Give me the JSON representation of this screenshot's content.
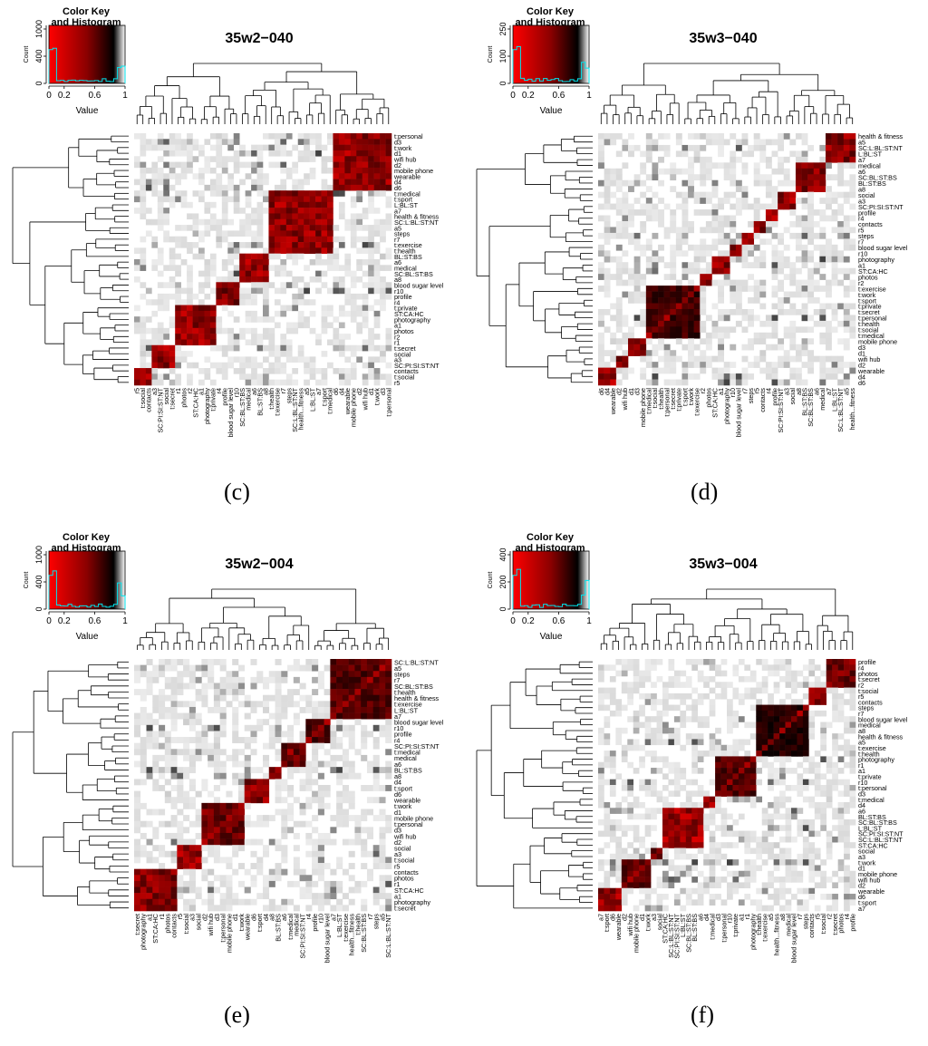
{
  "panels": {
    "c": {
      "tag": "(c)",
      "title": "35w2−040",
      "key_title": "Color Key\nand Histogram",
      "count_label": "Count",
      "count_ticks": [
        "0",
        "400",
        "1000"
      ],
      "value_label": "Value",
      "value_ticks": [
        "0",
        "0.2",
        "0.6",
        "1"
      ],
      "row_labels": [
        "t:personal",
        "d3",
        "t:work",
        "d1",
        "wifi hub",
        "d2",
        "mobile phone",
        "wearable",
        "d4",
        "d6",
        "t:medical",
        "t:sport",
        "L:BL:ST",
        "a7",
        "health & fitness",
        "SC:L:BL:ST:NT",
        "a5",
        "steps",
        "r7",
        "t:exercise",
        "t:health",
        "BL:ST:BS",
        "a6",
        "medical",
        "SC:BL:ST:BS",
        "a8",
        "blood sugar level",
        "r10",
        "profile",
        "r4",
        "t:private",
        "ST:CA:HC",
        "photography",
        "a1",
        "photos",
        "r2",
        "r1",
        "t:secret",
        "social",
        "a3",
        "SC:PI:SI:ST:NT",
        "contacts",
        "t:social",
        "r5"
      ],
      "col_labels": [
        "r5",
        "t:social",
        "contacts",
        "a3",
        "SC:PI:SI:ST:NT",
        "social",
        "t:secret",
        "r1",
        "photos",
        "r2",
        "ST:CA:HC",
        "a1",
        "photography",
        "t:private",
        "r4",
        "profile",
        "blood sugar level",
        "r10",
        "SC:BL:ST:BS",
        "medical",
        "a6",
        "BL:ST:BS",
        "a8",
        "t:health",
        "t:exercise",
        "r7",
        "steps",
        "SC:L:BL:ST:NT",
        "health...fitness",
        "a5",
        "L:BL:ST",
        "a7",
        "t:sport",
        "t:medical",
        "d6",
        "d4",
        "wearable",
        "mobile phone",
        "d2",
        "wifi hub",
        "d1",
        "t:work",
        "d3",
        "t:personal"
      ]
    },
    "d": {
      "tag": "(d)",
      "title": "35w3−040",
      "key_title": "Color Key\nand Histogram",
      "count_label": "Count",
      "count_ticks": [
        "0",
        "100",
        "250"
      ],
      "value_label": "Value",
      "value_ticks": [
        "0",
        "0.2",
        "0.6",
        "1"
      ],
      "row_labels": [
        "health & fitness",
        "a5",
        "SC:L:BL:ST:NT",
        "L:BL:ST",
        "a7",
        "medical",
        "a6",
        "SC:BL:ST:BS",
        "BL:ST:BS",
        "a8",
        "social",
        "a3",
        "SC:PI:SI:ST:NT",
        "profile",
        "r4",
        "contacts",
        "r5",
        "steps",
        "r7",
        "blood sugar level",
        "r10",
        "photography",
        "a1",
        "ST:CA:HC",
        "photos",
        "r2",
        "t:exercise",
        "t:work",
        "t:sport",
        "t:private",
        "t:secret",
        "t:personal",
        "t:health",
        "t:social",
        "t:medical",
        "mobile phone",
        "d3",
        "d1",
        "wifi hub",
        "d2",
        "wearable",
        "d4",
        "d6"
      ],
      "col_labels": [
        "d6",
        "d4",
        "wearable",
        "d2",
        "wifi hub",
        "d1",
        "d3",
        "mobile phone",
        "t:medical",
        "t:social",
        "t:health",
        "t:personal",
        "t:secret",
        "t:private",
        "t:sport",
        "t:work",
        "t:exercise",
        "r2",
        "photos",
        "ST:CA:HC",
        "a1",
        "photography",
        "r10",
        "blood sugar level",
        "r7",
        "steps",
        "r5",
        "contacts",
        "r4",
        "profile",
        "SC:PI:SI:ST:NT",
        "a3",
        "social",
        "a8",
        "BL:ST:BS",
        "SC:BL:ST:BS",
        "a6",
        "medical",
        "a7",
        "L:BL:ST",
        "SC:L:BL:ST:NT",
        "a5",
        "health...fitness"
      ]
    },
    "e": {
      "tag": "(e)",
      "title": "35w2−004",
      "key_title": "Color Key\nand Histogram",
      "count_label": "Count",
      "count_ticks": [
        "0",
        "400",
        "1000"
      ],
      "value_label": "Value",
      "value_ticks": [
        "0",
        "0.2",
        "0.6",
        "1"
      ],
      "row_labels": [
        "SC:L:BL:ST:NT",
        "a5",
        "steps",
        "r7",
        "SC:BL:ST:BS",
        "t:health",
        "health & fitness",
        "t:exercise",
        "L:BL:ST",
        "a7",
        "blood sugar level",
        "r10",
        "profile",
        "r4",
        "SC:PI:SI:ST:NT",
        "t:medical",
        "medical",
        "a6",
        "BL:ST:BS",
        "a8",
        "d4",
        "t:sport",
        "d6",
        "wearable",
        "t:work",
        "d1",
        "mobile phone",
        "t:personal",
        "d3",
        "wifi hub",
        "d2",
        "social",
        "a3",
        "t:social",
        "r5",
        "contacts",
        "photos",
        "r1",
        "ST:CA:HC",
        "a1",
        "photography",
        "t:secret"
      ],
      "col_labels": [
        "t:secret",
        "photography",
        "a1",
        "ST:CA:HC",
        "r1",
        "photos",
        "contacts",
        "r5",
        "t:social",
        "a3",
        "social",
        "d2",
        "wifi hub",
        "d3",
        "t:personal",
        "mobile phone",
        "d1",
        "t:work",
        "wearable",
        "d6",
        "t:sport",
        "d4",
        "a8",
        "BL:ST:BS",
        "a6",
        "t:medical",
        "medical",
        "SC:PI:SI:ST:NT",
        "r4",
        "profile",
        "r10",
        "blood sugar level",
        "a7",
        "L:BL:ST",
        "t:exercise",
        "health...fitness",
        "t:health",
        "SC:BL:ST:BS",
        "r7",
        "steps",
        "a5",
        "SC:L:BL:ST:NT"
      ]
    },
    "f": {
      "tag": "(f)",
      "title": "35w3−004",
      "key_title": "Color Key\nand Histogram",
      "count_label": "Count",
      "count_ticks": [
        "0",
        "200",
        "400"
      ],
      "value_label": "Value",
      "value_ticks": [
        "0",
        "0.2",
        "0.6",
        "1"
      ],
      "row_labels": [
        "profile",
        "r4",
        "photos",
        "t:secret",
        "r2",
        "t:social",
        "r5",
        "contacts",
        "steps",
        "r7",
        "blood sugar level",
        "medical",
        "a8",
        "health & fitness",
        "a5",
        "t:exercise",
        "t:health",
        "photography",
        "r1",
        "a1",
        "t:private",
        "r10",
        "t:personal",
        "d3",
        "t:medical",
        "d4",
        "a6",
        "BL:ST:BS",
        "SC:BL:ST:BS",
        "L:BL:ST",
        "SC:PI:SI:ST:NT",
        "SC:L:BL:ST:NT",
        "ST:CA:HC",
        "social",
        "a3",
        "t:work",
        "d1",
        "mobile phone",
        "wifi hub",
        "d2",
        "wearable",
        "d6",
        "t:sport",
        "a7"
      ],
      "col_labels": [
        "a7",
        "t:sport",
        "d6",
        "wearable",
        "d2",
        "wifi hub",
        "mobile phone",
        "d1",
        "t:work",
        "a3",
        "social",
        "ST:CA:HC",
        "SC:L:BL:ST:NT",
        "SC:PI:SI:ST:NT",
        "L:BL:ST",
        "SC:BL:ST:BS",
        "BL:ST:BS",
        "a6",
        "d4",
        "t:medical",
        "d3",
        "t:personal",
        "r10",
        "t:private",
        "a1",
        "r1",
        "photography",
        "t:health",
        "t:exercise",
        "a5",
        "health...fitness",
        "a8",
        "medical",
        "blood sugar level",
        "r7",
        "steps",
        "contacts",
        "r5",
        "t:social",
        "r2",
        "t:secret",
        "photos",
        "r4",
        "profile"
      ]
    }
  },
  "chart_data": [
    {
      "type": "heatmap",
      "title": "35w2−040",
      "colormap": [
        "#ff0000",
        "#000000",
        "#ffffff"
      ],
      "value_range": [
        0,
        1
      ],
      "histogram_count_range": [
        0,
        1000
      ],
      "grid": false,
      "legend_placement": "top-left",
      "dendrograms": [
        "top",
        "left"
      ],
      "clusters": [
        {
          "members": [
            "t:personal",
            "d3",
            "t:work",
            "d1",
            "wifi hub",
            "d2",
            "mobile phone",
            "wearable",
            "d4",
            "d6"
          ],
          "strength": 0.85
        },
        {
          "members": [
            "t:medical",
            "t:sport",
            "L:BL:ST",
            "a7",
            "health & fitness",
            "SC:L:BL:ST:NT",
            "a5",
            "steps",
            "r7",
            "t:exercise",
            "t:health"
          ],
          "strength": 0.85
        },
        {
          "members": [
            "BL:ST:BS",
            "a6",
            "medical",
            "SC:BL:ST:BS",
            "a8"
          ],
          "strength": 0.85
        },
        {
          "members": [
            "blood sugar level",
            "r10",
            "profile",
            "r4"
          ],
          "strength": 0.75
        },
        {
          "members": [
            "t:private",
            "ST:CA:HC",
            "photography",
            "a1",
            "photos",
            "r2",
            "r1"
          ],
          "strength": 0.85
        },
        {
          "members": [
            "t:secret",
            "social",
            "a3",
            "SC:PI:SI:ST:NT"
          ],
          "strength": 0.85
        },
        {
          "members": [
            "contacts",
            "t:social",
            "r5"
          ],
          "strength": 0.85
        }
      ]
    },
    {
      "type": "heatmap",
      "title": "35w3−040",
      "colormap": [
        "#ff0000",
        "#000000",
        "#ffffff"
      ],
      "value_range": [
        0,
        1
      ],
      "histogram_count_range": [
        0,
        250
      ],
      "grid": false,
      "legend_placement": "top-left",
      "dendrograms": [
        "top",
        "left"
      ],
      "clusters": [
        {
          "members": [
            "health & fitness",
            "a5",
            "SC:L:BL:ST:NT",
            "L:BL:ST",
            "a7"
          ],
          "strength": 0.8
        },
        {
          "members": [
            "medical",
            "a6",
            "SC:BL:ST:BS",
            "BL:ST:BS",
            "a8"
          ],
          "strength": 0.8
        },
        {
          "members": [
            "social",
            "a3",
            "SC:PI:SI:ST:NT"
          ],
          "strength": 0.85
        },
        {
          "members": [
            "profile",
            "r4"
          ],
          "strength": 0.85
        },
        {
          "members": [
            "contacts",
            "r5"
          ],
          "strength": 0.85
        },
        {
          "members": [
            "steps",
            "r7"
          ],
          "strength": 0.85
        },
        {
          "members": [
            "blood sugar level",
            "r10"
          ],
          "strength": 0.85
        },
        {
          "members": [
            "photography",
            "a1",
            "ST:CA:HC"
          ],
          "strength": 0.85
        },
        {
          "members": [
            "photos",
            "r2"
          ],
          "strength": 0.85
        },
        {
          "members": [
            "t:exercise",
            "t:work",
            "t:sport",
            "t:private",
            "t:secret",
            "t:personal",
            "t:health",
            "t:social",
            "t:medical"
          ],
          "strength": 0.5
        },
        {
          "members": [
            "mobile phone",
            "d3",
            "d1"
          ],
          "strength": 0.8
        },
        {
          "members": [
            "wifi hub",
            "d2"
          ],
          "strength": 0.85
        },
        {
          "members": [
            "wearable",
            "d4",
            "d6"
          ],
          "strength": 0.85
        }
      ]
    },
    {
      "type": "heatmap",
      "title": "35w2−004",
      "colormap": [
        "#ff0000",
        "#000000",
        "#ffffff"
      ],
      "value_range": [
        0,
        1
      ],
      "histogram_count_range": [
        0,
        1000
      ],
      "grid": false,
      "legend_placement": "top-left",
      "dendrograms": [
        "top",
        "left"
      ],
      "clusters": [
        {
          "members": [
            "SC:L:BL:ST:NT",
            "a5",
            "steps",
            "r7",
            "SC:BL:ST:BS",
            "t:health",
            "health & fitness",
            "t:exercise",
            "L:BL:ST",
            "a7"
          ],
          "strength": 0.6
        },
        {
          "members": [
            "blood sugar level",
            "r10",
            "profile",
            "r4"
          ],
          "strength": 0.6
        },
        {
          "members": [
            "SC:PI:SI:ST:NT",
            "t:medical",
            "medical",
            "a6"
          ],
          "strength": 0.6
        },
        {
          "members": [
            "BL:ST:BS",
            "a8"
          ],
          "strength": 0.85
        },
        {
          "members": [
            "d4",
            "t:sport",
            "d6",
            "wearable"
          ],
          "strength": 0.8
        },
        {
          "members": [
            "t:work",
            "d1",
            "mobile phone",
            "t:personal",
            "d3",
            "wifi hub",
            "d2"
          ],
          "strength": 0.7
        },
        {
          "members": [
            "social",
            "a3",
            "t:social",
            "r5"
          ],
          "strength": 0.85
        },
        {
          "members": [
            "contacts",
            "photos",
            "r1",
            "ST:CA:HC",
            "a1",
            "photography",
            "t:secret"
          ],
          "strength": 0.8
        }
      ]
    },
    {
      "type": "heatmap",
      "title": "35w3−004",
      "colormap": [
        "#ff0000",
        "#000000",
        "#ffffff"
      ],
      "value_range": [
        0,
        1
      ],
      "histogram_count_range": [
        0,
        400
      ],
      "grid": false,
      "legend_placement": "top-left",
      "dendrograms": [
        "top",
        "left"
      ],
      "clusters": [
        {
          "members": [
            "profile",
            "r4",
            "photos",
            "t:secret",
            "r2"
          ],
          "strength": 0.7
        },
        {
          "members": [
            "t:social",
            "r5",
            "contacts"
          ],
          "strength": 0.8
        },
        {
          "members": [
            "steps",
            "r7",
            "blood sugar level",
            "medical",
            "a8",
            "health & fitness",
            "a5",
            "t:exercise",
            "t:health"
          ],
          "strength": 0.4
        },
        {
          "members": [
            "photography",
            "r1",
            "a1",
            "t:private",
            "r10",
            "t:personal",
            "d3"
          ],
          "strength": 0.6
        },
        {
          "members": [
            "t:medical",
            "d4"
          ],
          "strength": 0.85
        },
        {
          "members": [
            "a6",
            "BL:ST:BS",
            "SC:BL:ST:BS",
            "L:BL:ST",
            "SC:PI:SI:ST:NT",
            "SC:L:BL:ST:NT",
            "ST:CA:HC"
          ],
          "strength": 0.9
        },
        {
          "members": [
            "social",
            "a3"
          ],
          "strength": 0.5
        },
        {
          "members": [
            "t:work",
            "d1",
            "mobile phone",
            "wifi hub",
            "d2"
          ],
          "strength": 0.6
        },
        {
          "members": [
            "wearable",
            "d6",
            "t:sport",
            "a7"
          ],
          "strength": 0.85
        }
      ]
    }
  ]
}
